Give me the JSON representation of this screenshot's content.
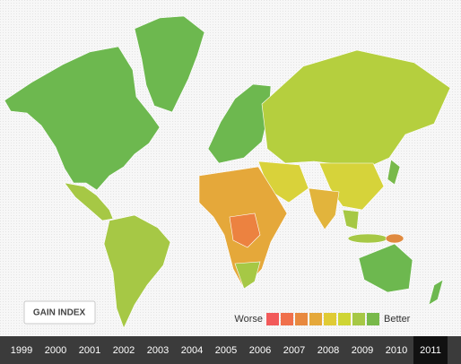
{
  "button": {
    "label": "GAIN INDEX"
  },
  "legend": {
    "low": "Worse",
    "high": "Better",
    "colors": [
      "#f25a5a",
      "#f0704c",
      "#e8893f",
      "#e5a83a",
      "#e0cb35",
      "#cfd534",
      "#a6c845",
      "#78b94a"
    ]
  },
  "timeline": {
    "years": [
      "1999",
      "2000",
      "2001",
      "2002",
      "2003",
      "2004",
      "2005",
      "2006",
      "2007",
      "2008",
      "2009",
      "2010",
      "2011"
    ],
    "selected": 12
  }
}
